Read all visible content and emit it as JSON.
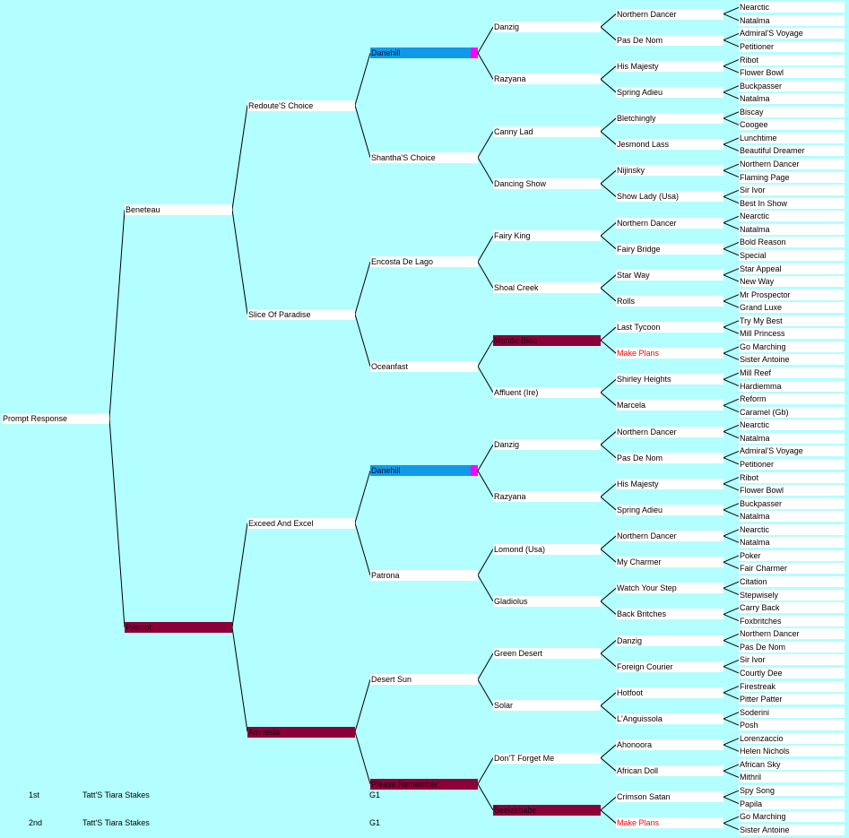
{
  "colors": {
    "background": "#b3ffff",
    "box": "#ffffff",
    "highlight": "#8b0038",
    "duplicate_sire": "#1099e8",
    "duplicate_marker": "#ff00ff",
    "red_text": "#ff0000"
  },
  "pedigree": {
    "subject": "Prompt Response",
    "gen1": [
      "Beneteau",
      "Prompt"
    ],
    "gen2": [
      "Redoute'S Choice",
      "Slice Of Paradise",
      "Exceed And Excel",
      "Amnesia"
    ],
    "gen3": [
      "Danehill",
      "Shantha'S Choice",
      "Encosta De Lago",
      "Oceanfast",
      "Danehill",
      "Patrona",
      "Desert Sun",
      "Please Remember"
    ],
    "gen4": [
      "Danzig",
      "Razyana",
      "Canny Lad",
      "Dancing Show",
      "Fairy King",
      "Shoal Creek",
      "Monde Bleu",
      "Affluent (Ire)",
      "Danzig",
      "Razyana",
      "Lomond (Usa)",
      "Gladiolus",
      "Green Desert",
      "Solar",
      "Don'T Forget Me",
      "Beelzebabe"
    ],
    "gen5": [
      "Northern Dancer",
      "Pas De Nom",
      "His Majesty",
      "Spring Adieu",
      "Bletchingly",
      "Jesmond Lass",
      "Nijinsky",
      "Show Lady (Usa)",
      "Northern Dancer",
      "Fairy Bridge",
      "Star Way",
      "Rolls",
      "Last Tycoon",
      "Make Plans",
      "Shirley Heights",
      "Marcela",
      "Northern Dancer",
      "Pas De Nom",
      "His Majesty",
      "Spring Adieu",
      "Northern Dancer",
      "My Charmer",
      "Watch Your Step",
      "Back Britches",
      "Danzig",
      "Foreign Courier",
      "Hotfoot",
      "L'Anguissola",
      "Ahonoora",
      "African Doll",
      "Crimson Satan",
      "Make Plans"
    ],
    "gen6": [
      "Nearctic",
      "Natalma",
      "Admiral'S Voyage",
      "Petitioner",
      "Ribot",
      "Flower Bowl",
      "Buckpasser",
      "Natalma",
      "Biscay",
      "Coogee",
      "Lunchtime",
      "Beautiful Dreamer",
      "Northern Dancer",
      "Flaming Page",
      "Sir Ivor",
      "Best In Show",
      "Nearctic",
      "Natalma",
      "Bold Reason",
      "Special",
      "Star Appeal",
      "New Way",
      "Mr Prospector",
      "Grand Luxe",
      "Try My Best",
      "Mill Princess",
      "Go Marching",
      "Sister Antoine",
      "Mill Reef",
      "Hardiemma",
      "Reform",
      "Caramel (Gb)",
      "Nearctic",
      "Natalma",
      "Admiral'S Voyage",
      "Petitioner",
      "Ribot",
      "Flower Bowl",
      "Buckpasser",
      "Natalma",
      "Nearctic",
      "Natalma",
      "Poker",
      "Fair Charmer",
      "Citation",
      "Stepwisely",
      "Carry Back",
      "Foxbritches",
      "Northern Dancer",
      "Pas De Nom",
      "Sir Ivor",
      "Courtly Dee",
      "Firestreak",
      "Pitter Patter",
      "Soderini",
      "Posh",
      "Lorenzaccio",
      "Helen Nichols",
      "African Sky",
      "Mithril",
      "Spy Song",
      "Papila",
      "Go Marching",
      "Sister Antoine"
    ]
  },
  "styles": {
    "gen1": [
      "",
      "hl"
    ],
    "gen2": [
      "",
      "",
      "",
      "hl"
    ],
    "gen3": [
      "blue",
      "",
      "",
      "",
      "blue",
      "",
      "",
      "hl"
    ],
    "gen4": [
      "",
      "",
      "",
      "",
      "",
      "",
      "hl",
      "",
      "",
      "",
      "",
      "",
      "",
      "",
      "",
      "hl"
    ],
    "gen5": [
      "",
      "",
      "",
      "",
      "",
      "",
      "",
      "",
      "",
      "",
      "",
      "",
      "",
      "red",
      "",
      "",
      "",
      "",
      "",
      "",
      "",
      "",
      "",
      "",
      "",
      "",
      "",
      "",
      "",
      "",
      "",
      "red"
    ]
  },
  "results": [
    {
      "place": "1st",
      "race": "Tatt'S Tiara Stakes",
      "grade": "G1"
    },
    {
      "place": "2nd",
      "race": "Tatt'S Tiara Stakes",
      "grade": "G1"
    }
  ]
}
